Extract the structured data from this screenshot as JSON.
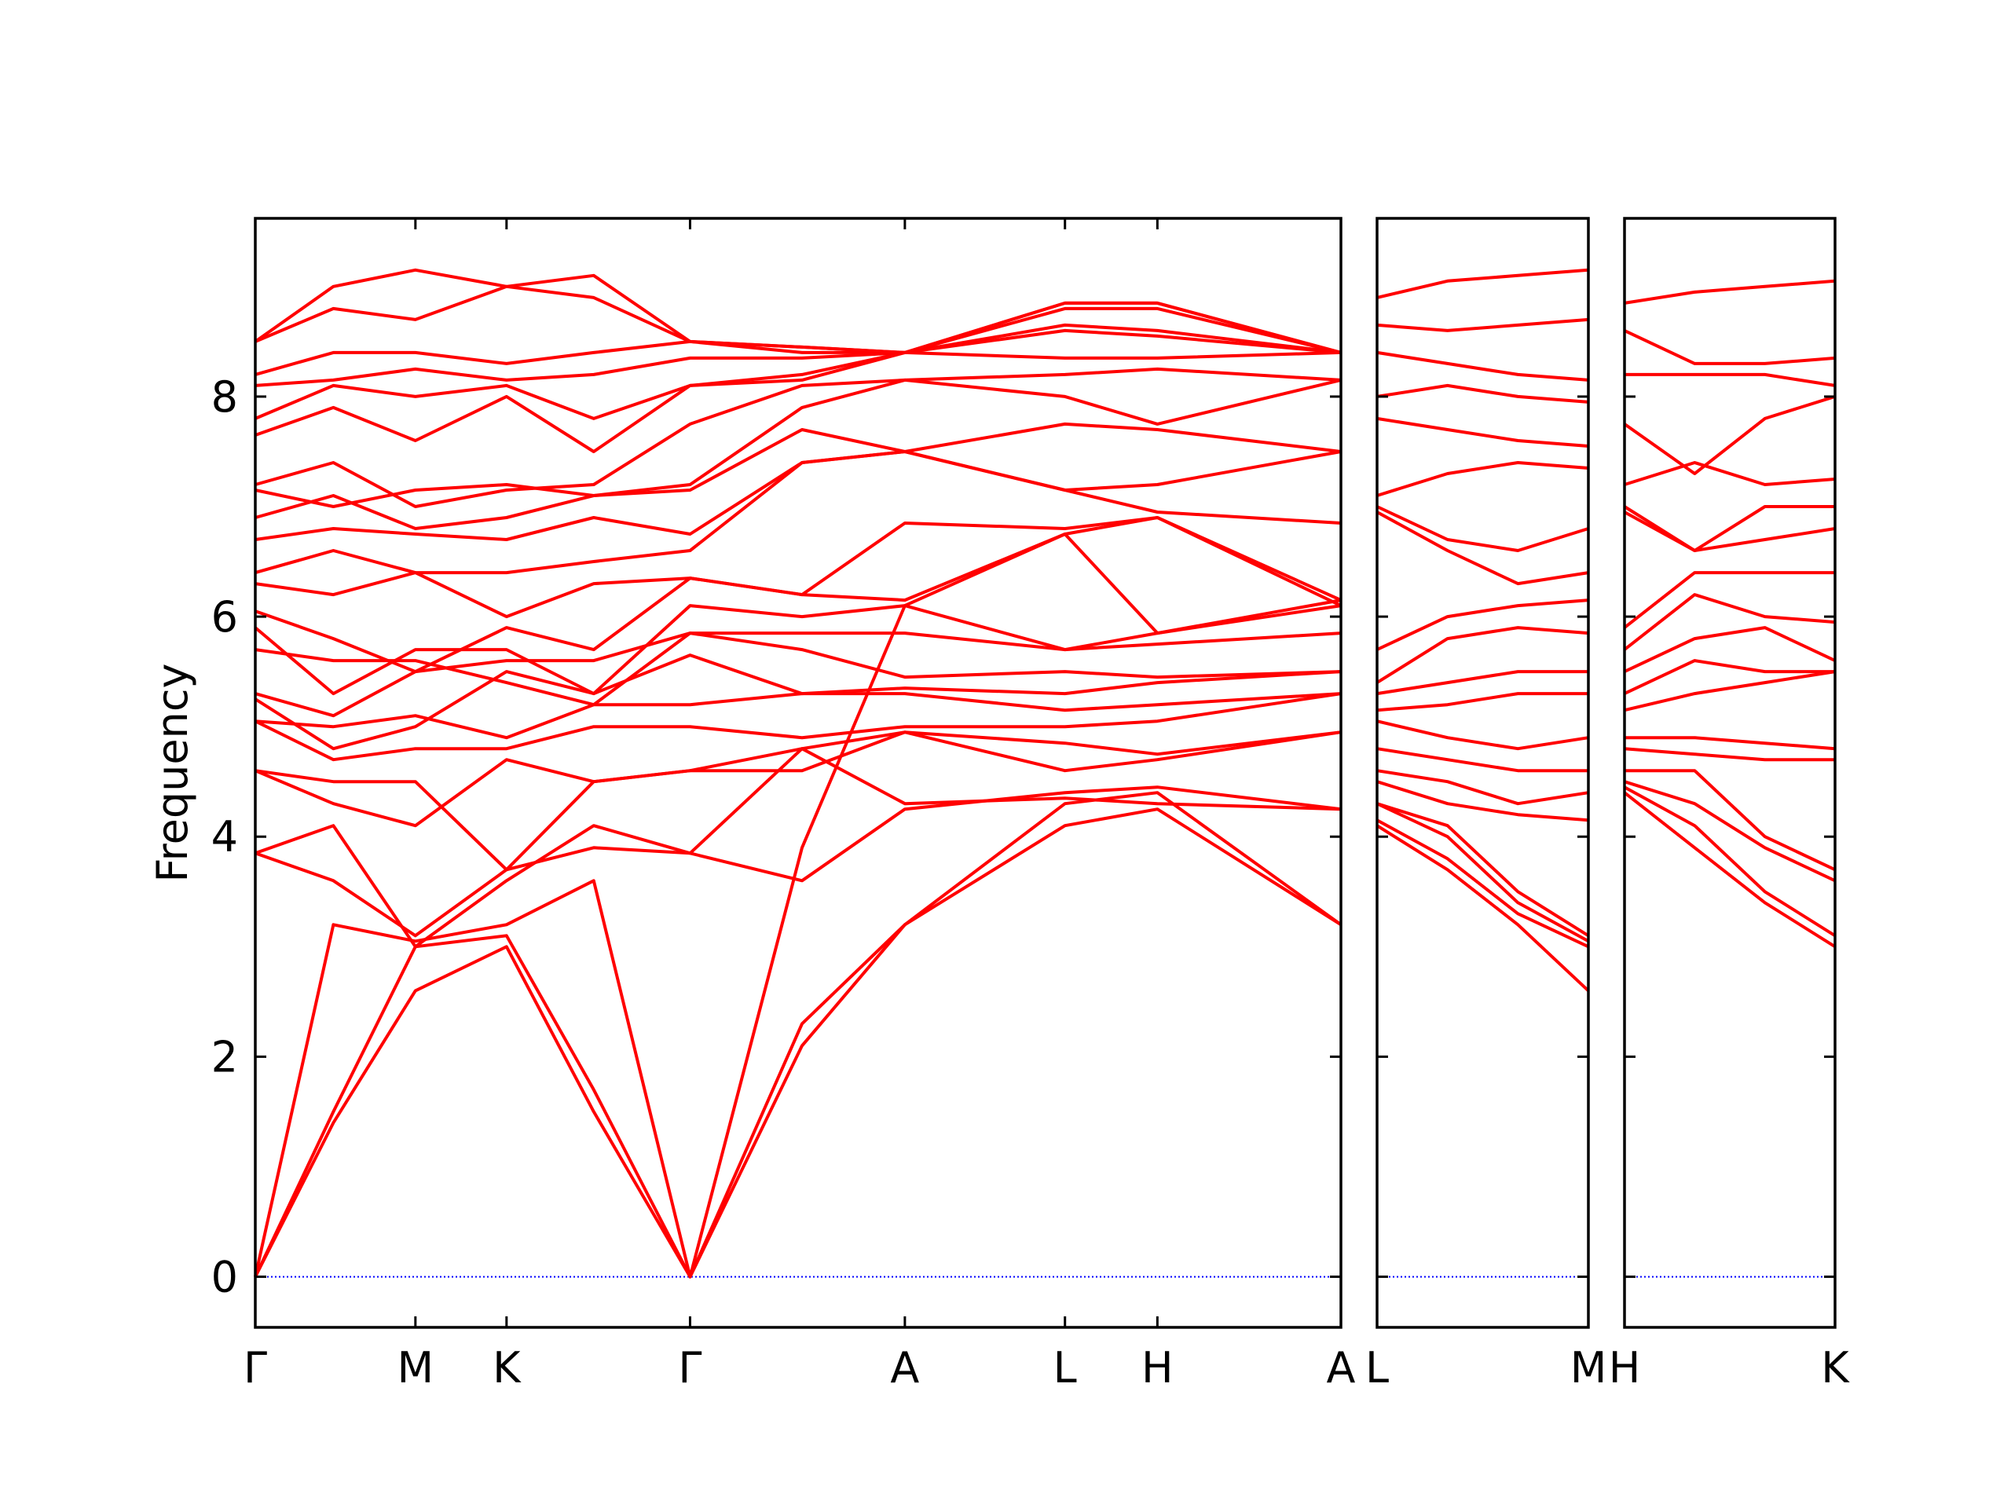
{
  "chart_data": [
    {
      "type": "line",
      "ylabel": "Frequency",
      "color": "#ff0000",
      "hline": 0,
      "hline_color": "#0000ff",
      "show_ytick_labels": true,
      "xlim": [
        0,
        8.34
      ],
      "ylim": [
        -0.46,
        9.62
      ],
      "yticks": [
        0,
        2,
        4,
        6,
        8
      ],
      "xticks": [
        {
          "value": 0,
          "label": "Γ"
        },
        {
          "value": 1.23,
          "label": "M"
        },
        {
          "value": 1.93,
          "label": "K"
        },
        {
          "value": 3.34,
          "label": "Γ"
        },
        {
          "value": 4.99,
          "label": "A"
        },
        {
          "value": 6.22,
          "label": "L"
        },
        {
          "value": 6.93,
          "label": "H"
        },
        {
          "value": 8.34,
          "label": "A"
        }
      ],
      "x": [
        0,
        0.6,
        1.23,
        1.93,
        2.6,
        3.34,
        4.2,
        4.99,
        6.22,
        6.93,
        8.34
      ],
      "series": [
        {
          "values": [
            0,
            1.4,
            2.6,
            3.0,
            1.5,
            0,
            2.1,
            3.2,
            4.1,
            4.25,
            3.2
          ]
        },
        {
          "values": [
            0,
            1.5,
            3.0,
            3.1,
            1.7,
            0,
            2.3,
            3.2,
            4.3,
            4.4,
            3.2
          ]
        },
        {
          "values": [
            0,
            3.2,
            3.05,
            3.2,
            3.6,
            0,
            3.9,
            6.1,
            6.75,
            6.9,
            6.1
          ]
        },
        {
          "values": [
            3.85,
            4.1,
            3.0,
            3.6,
            4.1,
            3.85,
            3.6,
            4.25,
            4.4,
            4.45,
            4.25
          ]
        },
        {
          "values": [
            3.85,
            3.6,
            3.1,
            3.7,
            3.9,
            3.85,
            4.8,
            4.3,
            4.35,
            4.3,
            4.25
          ]
        },
        {
          "values": [
            4.6,
            4.3,
            4.1,
            4.7,
            4.5,
            4.6,
            4.6,
            4.95,
            4.6,
            4.7,
            4.95
          ]
        },
        {
          "values": [
            4.6,
            4.5,
            4.5,
            3.7,
            4.5,
            4.6,
            4.8,
            4.95,
            4.85,
            4.75,
            4.95
          ]
        },
        {
          "values": [
            5.05,
            4.7,
            4.8,
            4.8,
            5.0,
            5.0,
            4.9,
            5.0,
            5.0,
            5.05,
            5.3
          ]
        },
        {
          "values": [
            5.05,
            5.0,
            5.1,
            4.9,
            5.2,
            5.2,
            5.3,
            5.3,
            5.15,
            5.2,
            5.3
          ]
        },
        {
          "values": [
            5.25,
            4.8,
            5.0,
            5.5,
            5.3,
            5.65,
            5.3,
            5.35,
            5.3,
            5.4,
            5.5
          ]
        },
        {
          "values": [
            5.3,
            5.1,
            5.5,
            5.6,
            5.6,
            5.85,
            5.7,
            5.45,
            5.5,
            5.45,
            5.5
          ]
        },
        {
          "values": [
            5.7,
            5.6,
            5.6,
            5.4,
            5.2,
            5.85,
            5.85,
            5.85,
            5.7,
            5.75,
            5.85
          ]
        },
        {
          "values": [
            5.9,
            5.3,
            5.7,
            5.7,
            5.3,
            6.1,
            6.0,
            6.1,
            5.7,
            5.85,
            6.1
          ]
        },
        {
          "values": [
            6.05,
            5.8,
            5.5,
            5.9,
            5.7,
            6.35,
            6.2,
            6.15,
            6.75,
            5.85,
            6.15
          ]
        },
        {
          "values": [
            6.3,
            6.2,
            6.4,
            6.0,
            6.3,
            6.35,
            6.2,
            6.85,
            6.8,
            6.9,
            6.15
          ]
        },
        {
          "values": [
            6.4,
            6.6,
            6.4,
            6.4,
            6.5,
            6.6,
            7.4,
            7.5,
            7.15,
            6.95,
            6.85
          ]
        },
        {
          "values": [
            6.7,
            6.8,
            6.75,
            6.7,
            6.9,
            6.75,
            7.4,
            7.5,
            7.15,
            7.2,
            7.5
          ]
        },
        {
          "values": [
            6.9,
            7.1,
            6.8,
            6.9,
            7.1,
            7.15,
            7.7,
            7.5,
            7.75,
            7.7,
            7.5
          ]
        },
        {
          "values": [
            7.15,
            7.0,
            7.15,
            7.2,
            7.1,
            7.2,
            7.9,
            8.15,
            8.0,
            7.75,
            8.15
          ]
        },
        {
          "values": [
            7.2,
            7.4,
            7.0,
            7.15,
            7.2,
            7.75,
            8.1,
            8.15,
            8.2,
            8.25,
            8.15
          ]
        },
        {
          "values": [
            7.65,
            7.9,
            7.6,
            8.0,
            7.5,
            8.1,
            8.15,
            8.4,
            8.35,
            8.35,
            8.4
          ]
        },
        {
          "values": [
            7.8,
            8.1,
            8.0,
            8.1,
            7.8,
            8.1,
            8.2,
            8.4,
            8.6,
            8.55,
            8.4
          ]
        },
        {
          "values": [
            8.1,
            8.15,
            8.25,
            8.15,
            8.2,
            8.35,
            8.35,
            8.4,
            8.65,
            8.6,
            8.4
          ]
        },
        {
          "values": [
            8.2,
            8.4,
            8.4,
            8.3,
            8.4,
            8.5,
            8.4,
            8.4,
            8.85,
            8.85,
            8.4
          ]
        },
        {
          "values": [
            8.5,
            8.8,
            8.7,
            9.0,
            8.9,
            8.5,
            8.45,
            8.4,
            8.8,
            8.8,
            8.4
          ]
        },
        {
          "values": [
            8.5,
            9.0,
            9.15,
            9.0,
            9.1,
            8.5,
            8.45,
            8.4,
            8.85,
            8.85,
            8.4
          ]
        }
      ]
    },
    {
      "type": "line",
      "color": "#ff0000",
      "hline": 0,
      "hline_color": "#0000ff",
      "show_ytick_labels": false,
      "xlim": [
        0,
        1.62
      ],
      "ylim": [
        -0.46,
        9.62
      ],
      "yticks": [
        0,
        2,
        4,
        6,
        8
      ],
      "xticks": [
        {
          "value": 0,
          "label": "L"
        },
        {
          "value": 1.62,
          "label": "M"
        }
      ],
      "x": [
        0,
        0.54,
        1.08,
        1.62
      ],
      "series": [
        {
          "values": [
            4.1,
            3.7,
            3.2,
            2.6
          ]
        },
        {
          "values": [
            4.15,
            3.8,
            3.3,
            3.0
          ]
        },
        {
          "values": [
            4.3,
            4.0,
            3.4,
            3.05
          ]
        },
        {
          "values": [
            4.3,
            4.1,
            3.5,
            3.1
          ]
        },
        {
          "values": [
            4.5,
            4.3,
            4.2,
            4.15
          ]
        },
        {
          "values": [
            4.6,
            4.5,
            4.3,
            4.4
          ]
        },
        {
          "values": [
            4.8,
            4.7,
            4.6,
            4.6
          ]
        },
        {
          "values": [
            5.05,
            4.9,
            4.8,
            4.9
          ]
        },
        {
          "values": [
            5.15,
            5.2,
            5.3,
            5.3
          ]
        },
        {
          "values": [
            5.3,
            5.4,
            5.5,
            5.5
          ]
        },
        {
          "values": [
            5.4,
            5.8,
            5.9,
            5.85
          ]
        },
        {
          "values": [
            5.7,
            6.0,
            6.1,
            6.15
          ]
        },
        {
          "values": [
            6.95,
            6.6,
            6.3,
            6.4
          ]
        },
        {
          "values": [
            7.0,
            6.7,
            6.6,
            6.8
          ]
        },
        {
          "values": [
            7.1,
            7.3,
            7.4,
            7.35
          ]
        },
        {
          "values": [
            7.8,
            7.7,
            7.6,
            7.55
          ]
        },
        {
          "values": [
            8.0,
            8.1,
            8.0,
            7.95
          ]
        },
        {
          "values": [
            8.4,
            8.3,
            8.2,
            8.15
          ]
        },
        {
          "values": [
            8.65,
            8.6,
            8.65,
            8.7
          ]
        },
        {
          "values": [
            8.9,
            9.05,
            9.1,
            9.15
          ]
        }
      ]
    },
    {
      "type": "line",
      "color": "#ff0000",
      "hline": 0,
      "hline_color": "#0000ff",
      "show_ytick_labels": false,
      "xlim": [
        0,
        1.62
      ],
      "ylim": [
        -0.46,
        9.62
      ],
      "yticks": [
        0,
        2,
        4,
        6,
        8
      ],
      "xticks": [
        {
          "value": 0,
          "label": "H"
        },
        {
          "value": 1.62,
          "label": "K"
        }
      ],
      "x": [
        0,
        0.54,
        1.08,
        1.62
      ],
      "series": [
        {
          "values": [
            4.4,
            3.9,
            3.4,
            3.0
          ]
        },
        {
          "values": [
            4.45,
            4.1,
            3.5,
            3.1
          ]
        },
        {
          "values": [
            4.5,
            4.3,
            3.9,
            3.6
          ]
        },
        {
          "values": [
            4.6,
            4.6,
            4.0,
            3.7
          ]
        },
        {
          "values": [
            4.8,
            4.75,
            4.7,
            4.7
          ]
        },
        {
          "values": [
            4.9,
            4.9,
            4.85,
            4.8
          ]
        },
        {
          "values": [
            5.15,
            5.3,
            5.4,
            5.5
          ]
        },
        {
          "values": [
            5.3,
            5.6,
            5.5,
            5.5
          ]
        },
        {
          "values": [
            5.5,
            5.8,
            5.9,
            5.6
          ]
        },
        {
          "values": [
            5.7,
            6.2,
            6.0,
            5.95
          ]
        },
        {
          "values": [
            5.9,
            6.4,
            6.4,
            6.4
          ]
        },
        {
          "values": [
            6.95,
            6.6,
            6.7,
            6.8
          ]
        },
        {
          "values": [
            7.0,
            6.6,
            7.0,
            7.0
          ]
        },
        {
          "values": [
            7.2,
            7.4,
            7.2,
            7.25
          ]
        },
        {
          "values": [
            7.75,
            7.3,
            7.8,
            8.0
          ]
        },
        {
          "values": [
            8.2,
            8.2,
            8.2,
            8.1
          ]
        },
        {
          "values": [
            8.6,
            8.3,
            8.3,
            8.35
          ]
        },
        {
          "values": [
            8.85,
            8.95,
            9.0,
            9.05
          ]
        }
      ]
    }
  ]
}
